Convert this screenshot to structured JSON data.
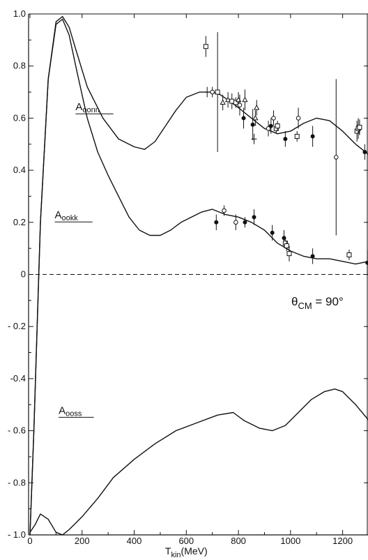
{
  "chart_data": {
    "type": "line",
    "title": "",
    "xlabel": "T",
    "xlabel_sub": "kin",
    "xlabel_unit": "(MeV)",
    "ylabel": "",
    "xlim": [
      0,
      1300
    ],
    "ylim": [
      -1.0,
      1.0
    ],
    "x_ticks": [
      0,
      200,
      400,
      600,
      800,
      1000,
      1200
    ],
    "x_tick_labels": [
      "0",
      "200",
      "400",
      "600",
      "800",
      "1000",
      "1200"
    ],
    "y_ticks": [
      1.0,
      0.8,
      0.6,
      0.4,
      0.2,
      0,
      -0.2,
      -0.4,
      -0.6,
      -0.8,
      -1.0
    ],
    "y_tick_labels": [
      "1.0",
      "0.8",
      "0.6",
      "0.4",
      "0.2",
      "0",
      "- 0.2",
      "-0.4",
      "- 0.6",
      "- 0.8",
      "- 1.0"
    ],
    "grid": false,
    "annotation": {
      "main": "θ",
      "sub": "CM",
      "tail": " = 90°"
    },
    "reference_line": {
      "y": 0,
      "style": "dashed"
    },
    "series": [
      {
        "name": "A",
        "name_sub": "oonn",
        "x": [
          0,
          15,
          40,
          70,
          100,
          125,
          150,
          180,
          220,
          280,
          340,
          400,
          440,
          480,
          520,
          560,
          600,
          650,
          700,
          730,
          760,
          800,
          850,
          900,
          950,
          1000,
          1050,
          1100,
          1150,
          1200,
          1250,
          1300
        ],
        "y": [
          -1.0,
          -0.6,
          0.2,
          0.75,
          0.97,
          0.99,
          0.95,
          0.85,
          0.72,
          0.6,
          0.52,
          0.49,
          0.48,
          0.51,
          0.57,
          0.63,
          0.68,
          0.7,
          0.7,
          0.69,
          0.67,
          0.64,
          0.6,
          0.56,
          0.54,
          0.55,
          0.58,
          0.6,
          0.59,
          0.55,
          0.5,
          0.46
        ],
        "label_x": 175,
        "label_y": 0.63
      },
      {
        "name": "A",
        "name_sub": "ookk",
        "x": [
          0,
          15,
          40,
          70,
          100,
          125,
          150,
          180,
          220,
          260,
          300,
          340,
          380,
          420,
          460,
          500,
          540,
          580,
          620,
          660,
          700,
          750,
          800,
          850,
          900,
          950,
          1000,
          1050,
          1100,
          1150,
          1200,
          1250,
          1300
        ],
        "y": [
          -1.0,
          -0.6,
          0.2,
          0.75,
          0.96,
          0.98,
          0.92,
          0.78,
          0.6,
          0.47,
          0.38,
          0.3,
          0.22,
          0.17,
          0.15,
          0.15,
          0.17,
          0.2,
          0.22,
          0.24,
          0.25,
          0.23,
          0.22,
          0.2,
          0.17,
          0.12,
          0.09,
          0.07,
          0.06,
          0.06,
          0.05,
          0.04,
          0.05
        ],
        "label_x": 95,
        "label_y": 0.215
      },
      {
        "name": "A",
        "name_sub": "ooss",
        "x": [
          0,
          20,
          40,
          70,
          100,
          125,
          150,
          200,
          260,
          320,
          400,
          480,
          560,
          640,
          720,
          780,
          820,
          880,
          930,
          980,
          1030,
          1080,
          1130,
          1170,
          1200,
          1250,
          1300
        ],
        "y": [
          -0.99,
          -0.96,
          -0.92,
          -0.94,
          -0.99,
          -1.0,
          -0.98,
          -0.93,
          -0.86,
          -0.78,
          -0.71,
          -0.65,
          -0.6,
          -0.57,
          -0.54,
          -0.53,
          -0.56,
          -0.59,
          -0.6,
          -0.58,
          -0.53,
          -0.48,
          -0.45,
          -0.44,
          -0.45,
          -0.5,
          -0.56
        ],
        "label_x": 110,
        "label_y": -0.535
      }
    ],
    "data_points": {
      "oonn": [
        {
          "x": 675,
          "y": 0.875,
          "err": 0.04,
          "m": "sq"
        },
        {
          "x": 680,
          "y": 0.7,
          "err": 0.02,
          "m": "tick"
        },
        {
          "x": 700,
          "y": 0.7,
          "err": 0.02,
          "m": "open"
        },
        {
          "x": 720,
          "y": 0.7,
          "err": 0.23,
          "m": "sq"
        },
        {
          "x": 740,
          "y": 0.66,
          "err": 0.03,
          "m": "tri"
        },
        {
          "x": 760,
          "y": 0.67,
          "err": 0.03,
          "m": "tri"
        },
        {
          "x": 775,
          "y": 0.665,
          "err": 0.03,
          "m": "sq"
        },
        {
          "x": 790,
          "y": 0.66,
          "err": 0.02,
          "m": "sq"
        },
        {
          "x": 800,
          "y": 0.67,
          "err": 0.03,
          "m": "tri"
        },
        {
          "x": 805,
          "y": 0.65,
          "err": 0.04,
          "m": "open"
        },
        {
          "x": 820,
          "y": 0.6,
          "err": 0.04,
          "m": "fill"
        },
        {
          "x": 825,
          "y": 0.67,
          "err": 0.04,
          "m": "tri"
        },
        {
          "x": 855,
          "y": 0.575,
          "err": 0.06,
          "m": "fill"
        },
        {
          "x": 860,
          "y": 0.52,
          "err": 0.02,
          "m": "tick"
        },
        {
          "x": 865,
          "y": 0.6,
          "err": 0.03,
          "m": "tri"
        },
        {
          "x": 870,
          "y": 0.64,
          "err": 0.03,
          "m": "tri"
        },
        {
          "x": 915,
          "y": 0.56,
          "err": 0.03,
          "m": "open"
        },
        {
          "x": 925,
          "y": 0.57,
          "err": 0.03,
          "m": "fill"
        },
        {
          "x": 935,
          "y": 0.6,
          "err": 0.03,
          "m": "open"
        },
        {
          "x": 945,
          "y": 0.56,
          "err": 0.02,
          "m": "sq"
        },
        {
          "x": 950,
          "y": 0.57,
          "err": 0.02,
          "m": "sq"
        },
        {
          "x": 980,
          "y": 0.52,
          "err": 0.03,
          "m": "fill"
        },
        {
          "x": 1025,
          "y": 0.53,
          "err": 0.02,
          "m": "sq"
        },
        {
          "x": 1030,
          "y": 0.6,
          "err": 0.04,
          "m": "open"
        },
        {
          "x": 1085,
          "y": 0.53,
          "err": 0.04,
          "m": "fill"
        },
        {
          "x": 1175,
          "y": 0.45,
          "err": 0.3,
          "m": "open"
        },
        {
          "x": 1255,
          "y": 0.55,
          "err": 0.04,
          "m": "sq"
        },
        {
          "x": 1260,
          "y": 0.56,
          "err": 0.04,
          "m": "sq"
        },
        {
          "x": 1265,
          "y": 0.565,
          "err": 0.03,
          "m": "sq"
        },
        {
          "x": 1285,
          "y": 0.47,
          "err": 0.03,
          "m": "fill"
        }
      ],
      "ookk": [
        {
          "x": 715,
          "y": 0.2,
          "err": 0.03,
          "m": "fill"
        },
        {
          "x": 745,
          "y": 0.245,
          "err": 0.02,
          "m": "open"
        },
        {
          "x": 790,
          "y": 0.2,
          "err": 0.03,
          "m": "open"
        },
        {
          "x": 825,
          "y": 0.2,
          "err": 0.02,
          "m": "fill"
        },
        {
          "x": 860,
          "y": 0.22,
          "err": 0.03,
          "m": "fill"
        },
        {
          "x": 930,
          "y": 0.16,
          "err": 0.03,
          "m": "fill"
        },
        {
          "x": 975,
          "y": 0.14,
          "err": 0.03,
          "m": "fill"
        },
        {
          "x": 980,
          "y": 0.12,
          "err": 0.02,
          "m": "sq"
        },
        {
          "x": 985,
          "y": 0.11,
          "err": 0.02,
          "m": "sq"
        },
        {
          "x": 995,
          "y": 0.08,
          "err": 0.03,
          "m": "sq"
        },
        {
          "x": 1085,
          "y": 0.07,
          "err": 0.03,
          "m": "fill"
        },
        {
          "x": 1225,
          "y": 0.075,
          "err": 0.02,
          "m": "sq"
        },
        {
          "x": 1295,
          "y": 0.045,
          "err": 0.05,
          "m": "fill"
        }
      ]
    }
  }
}
